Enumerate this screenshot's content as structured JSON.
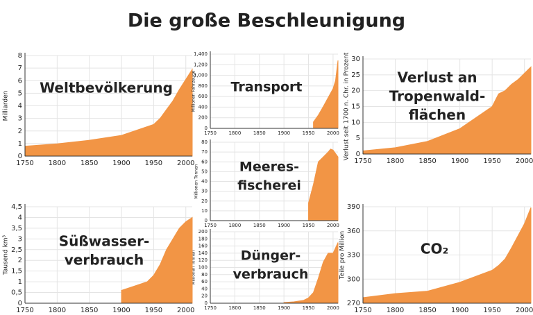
{
  "header": {
    "title": "Die große Beschleunigung"
  },
  "chart_data": [
    {
      "type": "area",
      "title": [
        "Weltbevölkerung"
      ],
      "ylabel": "Milliarden",
      "x": [
        1750,
        1800,
        1850,
        1900,
        1950,
        1960,
        1970,
        1980,
        1990,
        2000,
        2010
      ],
      "values": [
        0.79,
        0.98,
        1.26,
        1.65,
        2.52,
        3.0,
        3.7,
        4.4,
        5.3,
        6.1,
        6.9
      ],
      "xlim": [
        1750,
        2010
      ],
      "xticks": [
        1750,
        1800,
        1850,
        1900,
        1950,
        2000
      ],
      "ylim": [
        0,
        8
      ],
      "yticks": [
        0,
        1,
        2,
        3,
        4,
        5,
        6,
        7,
        8
      ],
      "color": "#f29545",
      "grid": true
    },
    {
      "type": "area",
      "title": [
        "Transport"
      ],
      "ylabel": "Millionen Fahrzeuge",
      "x": [
        1960,
        1970,
        1980,
        1990,
        2000,
        2005,
        2010
      ],
      "values": [
        120,
        250,
        410,
        580,
        750,
        900,
        1280
      ],
      "xlim": [
        1750,
        2010
      ],
      "xticks": [
        1750,
        1800,
        1850,
        1900,
        1950,
        2000
      ],
      "ylim": [
        0,
        1400
      ],
      "yticks": [
        0,
        200,
        400,
        600,
        800,
        {
          "value": 1000,
          "label": "1,000"
        },
        {
          "value": 1200,
          "label": "1,200"
        },
        {
          "value": 1400,
          "label": "1,400"
        }
      ],
      "color": "#f29545",
      "grid": true
    },
    {
      "type": "area",
      "title": [
        "Meeres-",
        "fischerei"
      ],
      "ylabel": "Millionen Tonnen",
      "x": [
        1950,
        1960,
        1970,
        1980,
        1990,
        1995,
        2000,
        2010
      ],
      "values": [
        18,
        37,
        60,
        65,
        70,
        73,
        72,
        65
      ],
      "xlim": [
        1750,
        2010
      ],
      "xticks": [
        1750,
        1800,
        1850,
        1900,
        1950,
        2000
      ],
      "ylim": [
        0,
        80
      ],
      "yticks": [
        0,
        10,
        20,
        30,
        40,
        50,
        60,
        70,
        80
      ],
      "color": "#f29545",
      "grid": true
    },
    {
      "type": "area",
      "title": [
        "Dünger-",
        "verbrauch"
      ],
      "ylabel": "Millionen Tonnen",
      "x": [
        1900,
        1920,
        1940,
        1950,
        1960,
        1970,
        1980,
        1990,
        2000,
        2010
      ],
      "values": [
        2,
        4,
        8,
        15,
        30,
        70,
        115,
        140,
        140,
        170
      ],
      "xlim": [
        1750,
        2010
      ],
      "xticks": [
        1750,
        1800,
        1850,
        1900,
        1950,
        2000
      ],
      "ylim": [
        0,
        200
      ],
      "yticks": [
        0,
        20,
        40,
        60,
        80,
        100,
        120,
        140,
        160,
        180,
        200
      ],
      "color": "#f29545",
      "grid": true
    },
    {
      "type": "area",
      "title": [
        "Verlust an",
        "Tropenwald-",
        "flächen"
      ],
      "ylabel": "Verlust seit 1700 n. Chr. in Prozent",
      "x": [
        1750,
        1800,
        1850,
        1900,
        1950,
        1960,
        1970,
        1980,
        1990,
        2000,
        2010
      ],
      "values": [
        1,
        2,
        4,
        8,
        15,
        19,
        20,
        22,
        23.5,
        25.5,
        27.5
      ],
      "xlim": [
        1750,
        2010
      ],
      "xticks": [
        1750,
        1800,
        1850,
        1900,
        1950,
        2000
      ],
      "ylim": [
        0,
        30
      ],
      "yticks": [
        0,
        5,
        10,
        15,
        20,
        25,
        30
      ],
      "color": "#f29545",
      "grid": true
    },
    {
      "type": "area",
      "title": [
        "Süßwasser-",
        "verbrauch"
      ],
      "ylabel": "Tausend km³",
      "x": [
        1900,
        1920,
        1940,
        1950,
        1960,
        1970,
        1980,
        1990,
        2000,
        2010
      ],
      "values": [
        0.6,
        0.8,
        1.0,
        1.3,
        1.8,
        2.5,
        3.0,
        3.5,
        3.8,
        4.0
      ],
      "xlim": [
        1750,
        2010
      ],
      "xticks": [
        1750,
        1800,
        1850,
        1900,
        1950,
        2000
      ],
      "ylim": [
        0,
        4.5
      ],
      "yticks": [
        0,
        {
          "value": 0.5,
          "label": "0,5"
        },
        1,
        {
          "value": 1.5,
          "label": "1,5"
        },
        2,
        {
          "value": 2.5,
          "label": "2,5"
        },
        3,
        {
          "value": 3.5,
          "label": "3,5"
        },
        4,
        {
          "value": 4.5,
          "label": "4,5"
        }
      ],
      "color": "#f29545",
      "grid": true
    },
    {
      "type": "area",
      "title": [
        "CO₂"
      ],
      "ylabel": "Teile pro Million",
      "x": [
        1750,
        1800,
        1850,
        1900,
        1950,
        1960,
        1970,
        1980,
        1990,
        2000,
        2010
      ],
      "values": [
        277,
        282,
        285,
        296,
        311,
        317,
        325,
        339,
        354,
        369,
        389
      ],
      "xlim": [
        1750,
        2010
      ],
      "xticks": [
        1750,
        1800,
        1850,
        1900,
        1950,
        2000
      ],
      "ylim": [
        270,
        390
      ],
      "yticks": [
        270,
        300,
        330,
        360,
        390
      ],
      "color": "#f29545",
      "grid": true
    }
  ]
}
